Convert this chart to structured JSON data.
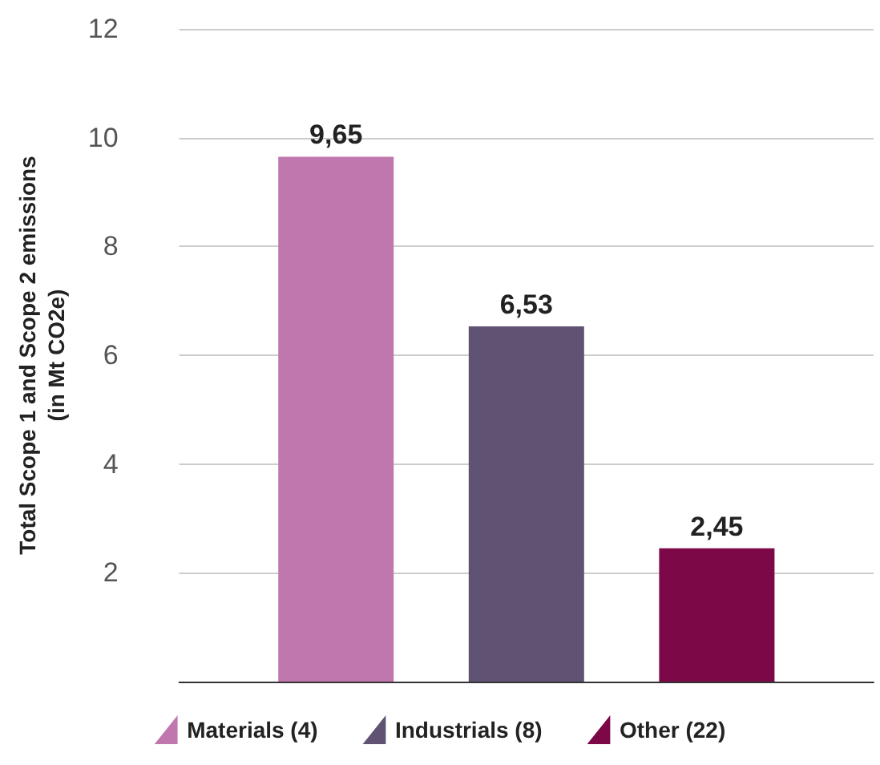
{
  "chart_data": {
    "type": "bar",
    "ylabel": "Total Scope 1 and Scope 2 emissions\n(in Mt CO2e)",
    "categories": [
      null
    ],
    "series": [
      {
        "name": "Materials (4)",
        "color": "#c077ae",
        "values": [
          9.65
        ],
        "value_labels": [
          "9,65"
        ]
      },
      {
        "name": "Industrials (8)",
        "color": "#605272",
        "values": [
          6.53
        ],
        "value_labels": [
          "6,53"
        ]
      },
      {
        "name": "Other (22)",
        "color": "#7c0848",
        "values": [
          2.45
        ],
        "value_labels": [
          "2,45"
        ]
      }
    ],
    "ylim": [
      0,
      12
    ],
    "yticks": [
      2,
      4,
      6,
      8,
      10,
      12
    ],
    "grid": "y",
    "legend": "bottom"
  }
}
